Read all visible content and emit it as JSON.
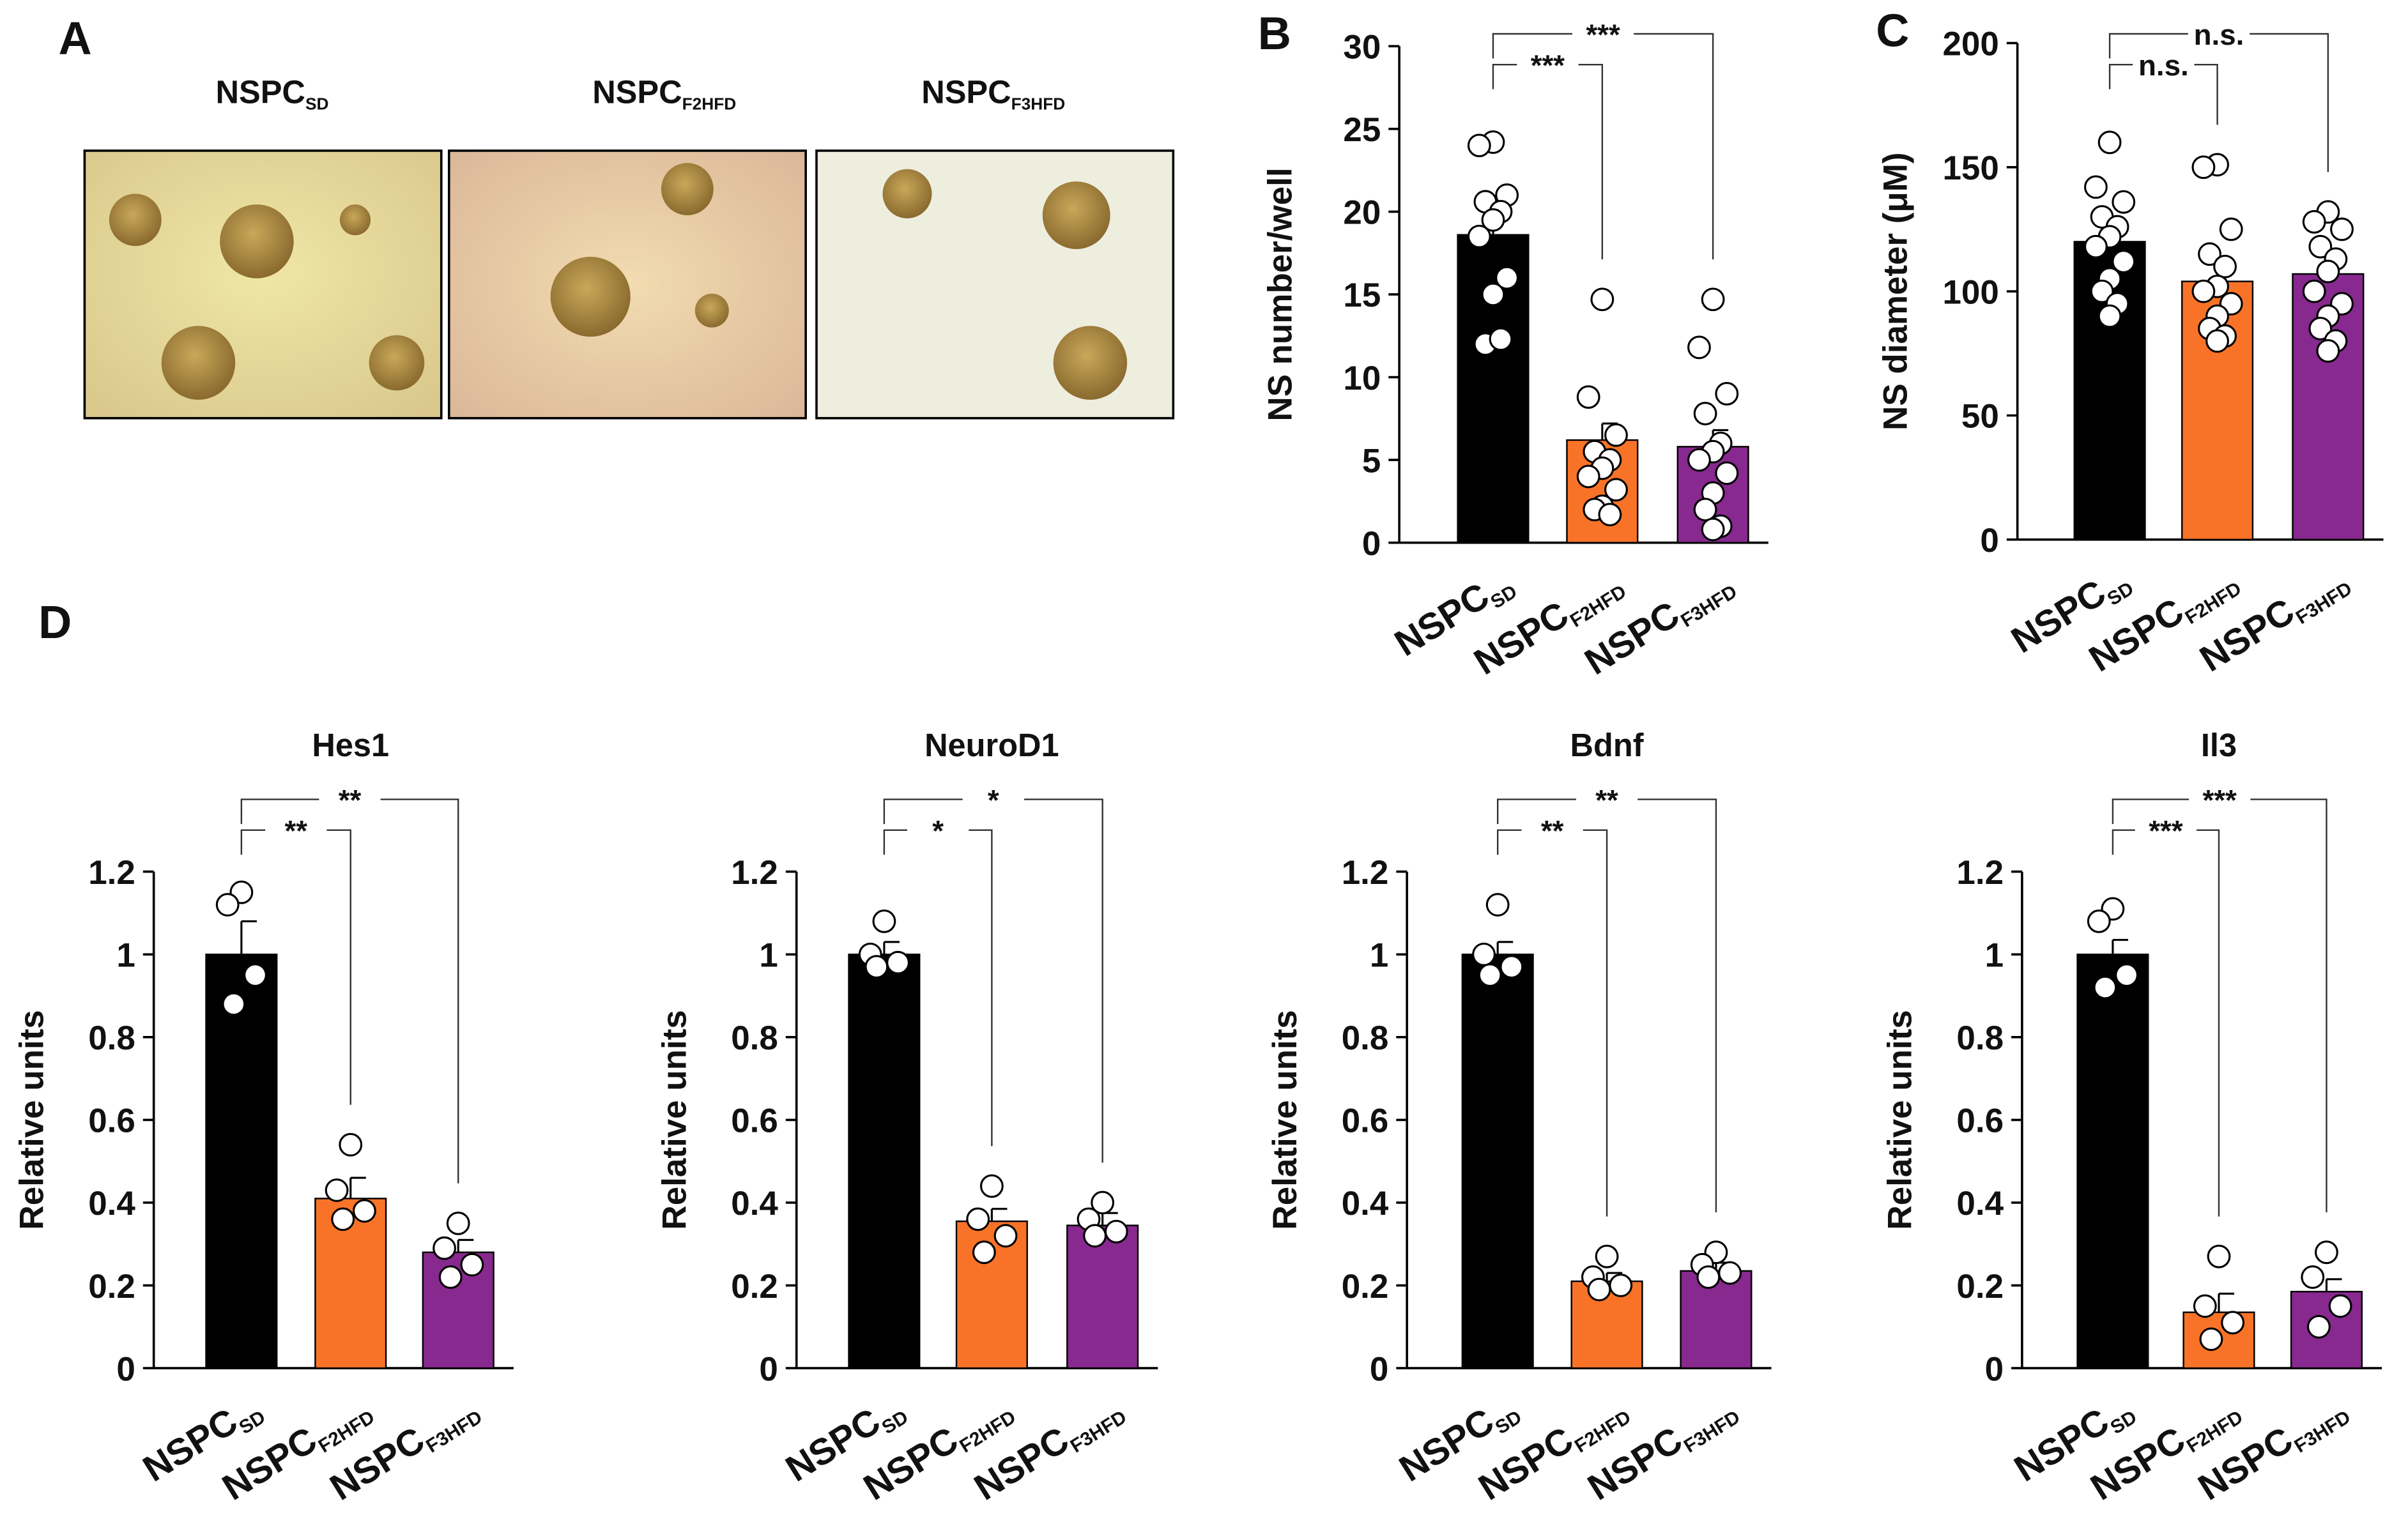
{
  "panel_a": {
    "label": "A",
    "titles": [
      "NSPC",
      "NSPC",
      "NSPC"
    ],
    "subscripts": [
      "SD",
      "F2HFD",
      "F3HFD"
    ]
  },
  "panel_d": {
    "label": "D"
  },
  "chart_data": [
    {
      "type": "bar",
      "panel_label": "B",
      "ylabel": "NS number/well",
      "categories": [
        "NSPC",
        "NSPC",
        "NSPC"
      ],
      "category_subscripts": [
        "SD",
        "F2HFD",
        "F3HFD"
      ],
      "colors": [
        "#000000",
        "#f87327",
        "#87298e"
      ],
      "values": [
        18.6,
        6.2,
        5.8
      ],
      "errors": [
        1.2,
        1.0,
        1.0
      ],
      "points": [
        [
          24.2,
          24,
          21,
          20.6,
          20,
          19.5,
          18.5,
          16,
          15,
          12,
          12.3
        ],
        [
          14.7,
          8.8,
          6.5,
          5.5,
          5,
          4.5,
          4,
          3.2,
          2.2,
          2,
          1.7
        ],
        [
          14.7,
          11.8,
          9,
          7.8,
          6,
          5.5,
          5,
          4.2,
          3,
          2,
          1,
          0.8
        ]
      ],
      "ylim": [
        0,
        30
      ],
      "yticks": [
        0,
        5,
        10,
        15,
        20,
        25,
        30
      ],
      "significance": [
        "***",
        "***"
      ]
    },
    {
      "type": "bar",
      "panel_label": "C",
      "ylabel": "NS diameter (μM)",
      "categories": [
        "NSPC",
        "NSPC",
        "NSPC"
      ],
      "category_subscripts": [
        "SD",
        "F2HFD",
        "F3HFD"
      ],
      "colors": [
        "#000000",
        "#f87327",
        "#87298e"
      ],
      "values": [
        120,
        104,
        107
      ],
      "errors": [
        6,
        6,
        6
      ],
      "points": [
        [
          160,
          142,
          136,
          130,
          126,
          122,
          118,
          112,
          105,
          100,
          95,
          90
        ],
        [
          151,
          150,
          125,
          115,
          110,
          102,
          100,
          95,
          90,
          85,
          82,
          80
        ],
        [
          132,
          128,
          125,
          118,
          113,
          108,
          100,
          95,
          90,
          85,
          80,
          76
        ]
      ],
      "ylim": [
        0,
        200
      ],
      "yticks": [
        0,
        50,
        100,
        150,
        200
      ],
      "significance": [
        "n.s.",
        "n.s."
      ]
    },
    {
      "type": "bar",
      "title": "Hes1",
      "ylabel": "Relative units",
      "categories": [
        "NSPC",
        "NSPC",
        "NSPC"
      ],
      "category_subscripts": [
        "SD",
        "F2HFD",
        "F3HFD"
      ],
      "colors": [
        "#000000",
        "#f87327",
        "#87298e"
      ],
      "values": [
        1.0,
        0.41,
        0.28
      ],
      "errors": [
        0.08,
        0.05,
        0.03
      ],
      "points": [
        [
          1.15,
          1.12,
          0.95,
          0.88
        ],
        [
          0.54,
          0.43,
          0.38,
          0.36
        ],
        [
          0.35,
          0.29,
          0.25,
          0.22
        ]
      ],
      "ylim": [
        0,
        1.2
      ],
      "yticks": [
        0,
        0.2,
        0.4,
        0.6,
        0.8,
        1,
        1.2
      ],
      "significance": [
        "**",
        "**"
      ]
    },
    {
      "type": "bar",
      "title": "NeuroD1",
      "ylabel": "Relative units",
      "categories": [
        "NSPC",
        "NSPC",
        "NSPC"
      ],
      "category_subscripts": [
        "SD",
        "F2HFD",
        "F3HFD"
      ],
      "colors": [
        "#000000",
        "#f87327",
        "#87298e"
      ],
      "values": [
        1.0,
        0.355,
        0.345
      ],
      "errors": [
        0.03,
        0.03,
        0.03
      ],
      "points": [
        [
          1.08,
          1.0,
          0.98,
          0.97
        ],
        [
          0.44,
          0.36,
          0.32,
          0.28
        ],
        [
          0.4,
          0.36,
          0.33,
          0.32
        ]
      ],
      "ylim": [
        0,
        1.2
      ],
      "yticks": [
        0,
        0.2,
        0.4,
        0.6,
        0.8,
        1,
        1.2
      ],
      "significance": [
        "*",
        "*"
      ]
    },
    {
      "type": "bar",
      "title": "Bdnf",
      "ylabel": "Relative units",
      "categories": [
        "NSPC",
        "NSPC",
        "NSPC"
      ],
      "category_subscripts": [
        "SD",
        "F2HFD",
        "F3HFD"
      ],
      "colors": [
        "#000000",
        "#f87327",
        "#87298e"
      ],
      "values": [
        1.0,
        0.21,
        0.235
      ],
      "errors": [
        0.03,
        0.02,
        0.02
      ],
      "points": [
        [
          1.12,
          1.0,
          0.97,
          0.95
        ],
        [
          0.27,
          0.22,
          0.2,
          0.19
        ],
        [
          0.28,
          0.25,
          0.23,
          0.22
        ]
      ],
      "ylim": [
        0,
        1.2
      ],
      "yticks": [
        0,
        0.2,
        0.4,
        0.6,
        0.8,
        1,
        1.2
      ],
      "significance": [
        "**",
        "**"
      ]
    },
    {
      "type": "bar",
      "title": "Il3",
      "ylabel": "Relative units",
      "categories": [
        "NSPC",
        "NSPC",
        "NSPC"
      ],
      "category_subscripts": [
        "SD",
        "F2HFD",
        "F3HFD"
      ],
      "colors": [
        "#000000",
        "#f87327",
        "#87298e"
      ],
      "values": [
        1.0,
        0.135,
        0.185
      ],
      "errors": [
        0.035,
        0.045,
        0.03
      ],
      "points": [
        [
          1.11,
          1.08,
          0.95,
          0.92
        ],
        [
          0.27,
          0.15,
          0.11,
          0.07
        ],
        [
          0.28,
          0.22,
          0.15,
          0.1
        ]
      ],
      "ylim": [
        0,
        1.2
      ],
      "yticks": [
        0,
        0.2,
        0.4,
        0.6,
        0.8,
        1,
        1.2
      ],
      "significance": [
        "***",
        "***"
      ]
    }
  ]
}
